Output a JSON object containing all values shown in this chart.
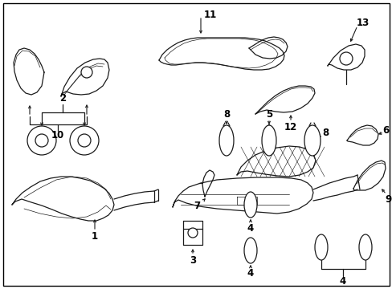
{
  "bg_color": "#ffffff",
  "line_color": "#1a1a1a",
  "fig_width": 4.89,
  "fig_height": 3.6,
  "dpi": 100,
  "border": true,
  "components": {
    "label_fontsize": 8.5,
    "label_fontweight": "bold"
  }
}
